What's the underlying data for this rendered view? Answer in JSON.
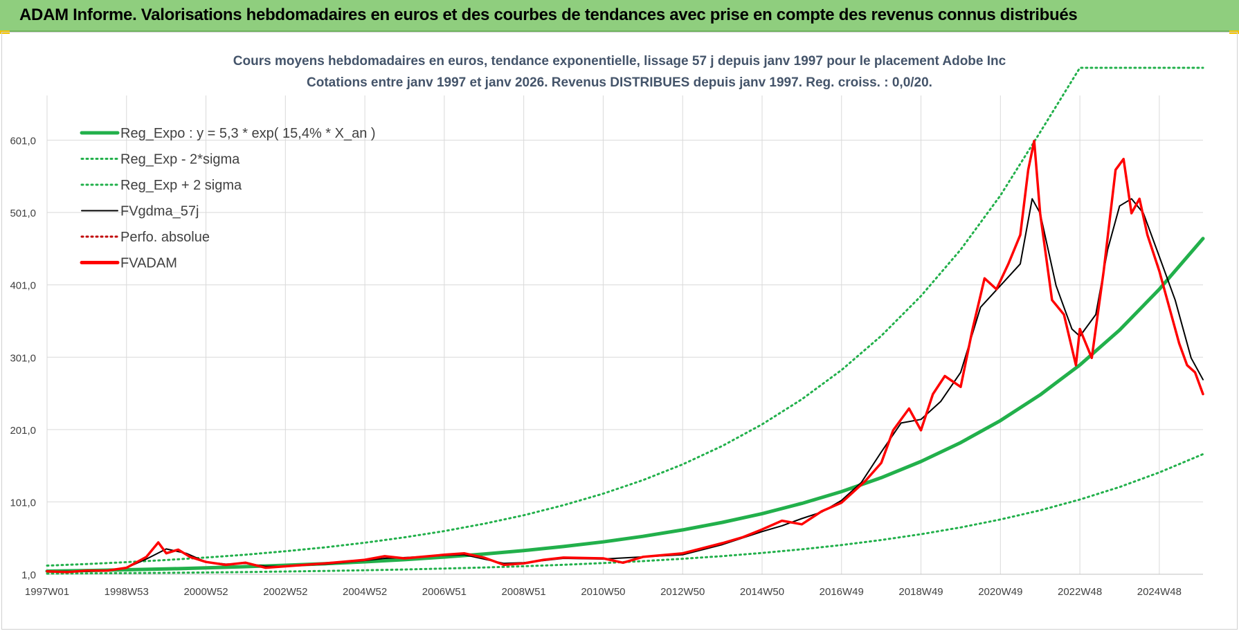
{
  "page": {
    "banner_title": "ADAM Informe. Valorisations hebdomadaires en euros et des courbes de tendances avec prise en compte des revenus connus distribués"
  },
  "colors": {
    "banner_bg": "#8fce7e",
    "reg_expo": "#22b04b",
    "fvgdma": "#000000",
    "perfo": "#c00000",
    "fvadam": "#ff0000",
    "grid": "#d9d9d9",
    "title_text": "#44546a"
  },
  "chart_data": {
    "type": "line",
    "title": "Cours moyens hebdomadaires en euros, tendance exponentielle, lissage 57 j depuis janv 1997 pour le placement Adobe Inc",
    "subtitle": "Cotations entre janv 1997 et janv 2026. Revenus DISTRIBUES depuis janv 1997. Reg. croiss. : 0,0/20.",
    "xlabel": "",
    "ylabel": "",
    "x_range": [
      1997.0,
      2026.1
    ],
    "ylim": [
      1,
      701
    ],
    "y_ticks": [
      1,
      101,
      201,
      301,
      401,
      501,
      601
    ],
    "y_tick_labels": [
      "1,0",
      "101,0",
      "201,0",
      "301,0",
      "401,0",
      "501,0",
      "601,0"
    ],
    "x_tick_labels": [
      "1997W01",
      "1998W53",
      "2000W52",
      "2002W52",
      "2004W52",
      "2006W51",
      "2008W51",
      "2010W50",
      "2012W50",
      "2014W50",
      "2016W49",
      "2018W49",
      "2020W49",
      "2022W48",
      "2024W48"
    ],
    "x_tick_values": [
      1997.0,
      1999.0,
      2001.0,
      2003.0,
      2005.0,
      2007.0,
      2009.0,
      2011.0,
      2013.0,
      2015.0,
      2017.0,
      2019.0,
      2021.0,
      2023.0,
      2025.0
    ],
    "grid": "horizontal and vertical",
    "legend_position": "top-left",
    "series": [
      {
        "name": "Reg_Expo : y = 5,3 * exp( 15,4% *  X_an )",
        "style": "solid-thick",
        "color": "#22b04b",
        "x": [
          1997,
          1998,
          1999,
          2000,
          2001,
          2002,
          2003,
          2004,
          2005,
          2006,
          2007,
          2008,
          2009,
          2010,
          2011,
          2012,
          2013,
          2014,
          2015,
          2016,
          2017,
          2018,
          2019,
          2020,
          2021,
          2022,
          2023,
          2024,
          2025,
          2026.1
        ],
        "values": [
          5.3,
          6.2,
          7.2,
          8.4,
          9.8,
          11.5,
          13.4,
          15.6,
          18.2,
          21.2,
          24.8,
          28.9,
          33.7,
          39.3,
          45.8,
          53.4,
          62.3,
          72.7,
          84.8,
          98.9,
          115.3,
          134.5,
          156.9,
          183.0,
          213.4,
          249.0,
          290.3,
          338.6,
          395.0,
          465.0
        ]
      },
      {
        "name": "Reg_Exp - 2*sigma",
        "style": "dotted",
        "color": "#22b04b",
        "x": [
          1997,
          1998,
          1999,
          2000,
          2001,
          2002,
          2003,
          2004,
          2005,
          2006,
          2007,
          2008,
          2009,
          2010,
          2011,
          2012,
          2013,
          2014,
          2015,
          2016,
          2017,
          2018,
          2019,
          2020,
          2021,
          2022,
          2023,
          2024,
          2025,
          2026.1
        ],
        "values": [
          1.9,
          2.2,
          2.6,
          3.0,
          3.5,
          4.1,
          4.8,
          5.6,
          6.5,
          7.6,
          8.9,
          10.4,
          12.1,
          14.1,
          16.5,
          19.2,
          22.4,
          26.1,
          30.5,
          35.5,
          41.4,
          48.3,
          56.4,
          65.7,
          76.7,
          89.4,
          104.3,
          121.6,
          141.8,
          167.0
        ]
      },
      {
        "name": "Reg_Exp + 2 sigma",
        "style": "dotted",
        "color": "#22b04b",
        "x": [
          1997,
          1998,
          1999,
          2000,
          2001,
          2002,
          2003,
          2004,
          2005,
          2006,
          2007,
          2008,
          2009,
          2010,
          2011,
          2012,
          2013,
          2014,
          2015,
          2016,
          2017,
          2018,
          2019,
          2020,
          2021,
          2022,
          2023,
          2024,
          2025,
          2026.1
        ],
        "values": [
          13.0,
          15.2,
          17.7,
          20.7,
          24.1,
          28.1,
          32.8,
          38.2,
          44.6,
          52.1,
          60.7,
          70.8,
          82.6,
          96.4,
          112.4,
          131.1,
          152.9,
          178.4,
          208.2,
          242.8,
          283.3,
          330.5,
          385.5,
          449.7,
          524.6,
          612.0,
          701,
          701,
          701,
          701
        ]
      },
      {
        "name": "FVgdma_57j",
        "style": "solid-thin",
        "color": "#000000",
        "x": [
          1997,
          1997.5,
          1998,
          1998.5,
          1999,
          1999.5,
          2000,
          2000.5,
          2001,
          2001.5,
          2002,
          2002.5,
          2003,
          2004,
          2005,
          2005.5,
          2006,
          2007,
          2007.5,
          2008,
          2008.5,
          2009,
          2009.5,
          2010,
          2011,
          2012,
          2013,
          2014,
          2015,
          2015.5,
          2016,
          2016.5,
          2017,
          2017.5,
          2018,
          2018.5,
          2019,
          2019.5,
          2020,
          2020.5,
          2021,
          2021.5,
          2021.8,
          2022,
          2022.4,
          2022.8,
          2023,
          2023.4,
          2023.7,
          2024,
          2024.3,
          2024.6,
          2025,
          2025.4,
          2025.8,
          2026.1
        ],
        "values": [
          5,
          5,
          5,
          6,
          10,
          22,
          36,
          30,
          18,
          15,
          16,
          12,
          12,
          15,
          20,
          23,
          24,
          27,
          28,
          22,
          16,
          17,
          20,
          23,
          22,
          25,
          28,
          42,
          60,
          68,
          78,
          87,
          103,
          128,
          170,
          210,
          215,
          240,
          280,
          370,
          400,
          430,
          520,
          500,
          400,
          340,
          330,
          360,
          450,
          510,
          520,
          500,
          440,
          380,
          300,
          270
        ]
      },
      {
        "name": "Perfo. absolue",
        "style": "dotted",
        "color": "#c00000",
        "x": [],
        "values": []
      },
      {
        "name": "FVADAM",
        "style": "solid-thick",
        "color": "#ff0000",
        "x": [
          1997,
          1997.5,
          1998,
          1998.5,
          1999,
          1999.5,
          1999.8,
          2000,
          2000.3,
          2000.6,
          2001,
          2001.5,
          2002,
          2002.5,
          2003,
          2004,
          2005,
          2005.5,
          2006,
          2007,
          2007.5,
          2008,
          2008.5,
          2009,
          2009.5,
          2010,
          2011,
          2011.5,
          2012,
          2013,
          2014,
          2014.5,
          2015,
          2015.5,
          2016,
          2016.5,
          2017,
          2017.3,
          2017.6,
          2018,
          2018.3,
          2018.7,
          2019,
          2019.3,
          2019.6,
          2020,
          2020.3,
          2020.6,
          2020.9,
          2021.2,
          2021.5,
          2021.7,
          2021.85,
          2022,
          2022.3,
          2022.6,
          2022.9,
          2023,
          2023.3,
          2023.6,
          2023.9,
          2024.1,
          2024.3,
          2024.5,
          2024.7,
          2025,
          2025.3,
          2025.5,
          2025.7,
          2025.9,
          2026.1
        ],
        "values": [
          5,
          4,
          6,
          6,
          10,
          25,
          45,
          30,
          35,
          25,
          18,
          14,
          17,
          10,
          12,
          16,
          21,
          26,
          23,
          28,
          30,
          24,
          14,
          16,
          21,
          24,
          23,
          17,
          25,
          30,
          44,
          52,
          63,
          75,
          70,
          88,
          100,
          115,
          130,
          155,
          200,
          230,
          200,
          250,
          275,
          260,
          340,
          410,
          395,
          430,
          470,
          560,
          600,
          500,
          380,
          360,
          290,
          340,
          300,
          420,
          560,
          575,
          500,
          520,
          470,
          420,
          360,
          320,
          290,
          280,
          250
        ]
      }
    ]
  }
}
